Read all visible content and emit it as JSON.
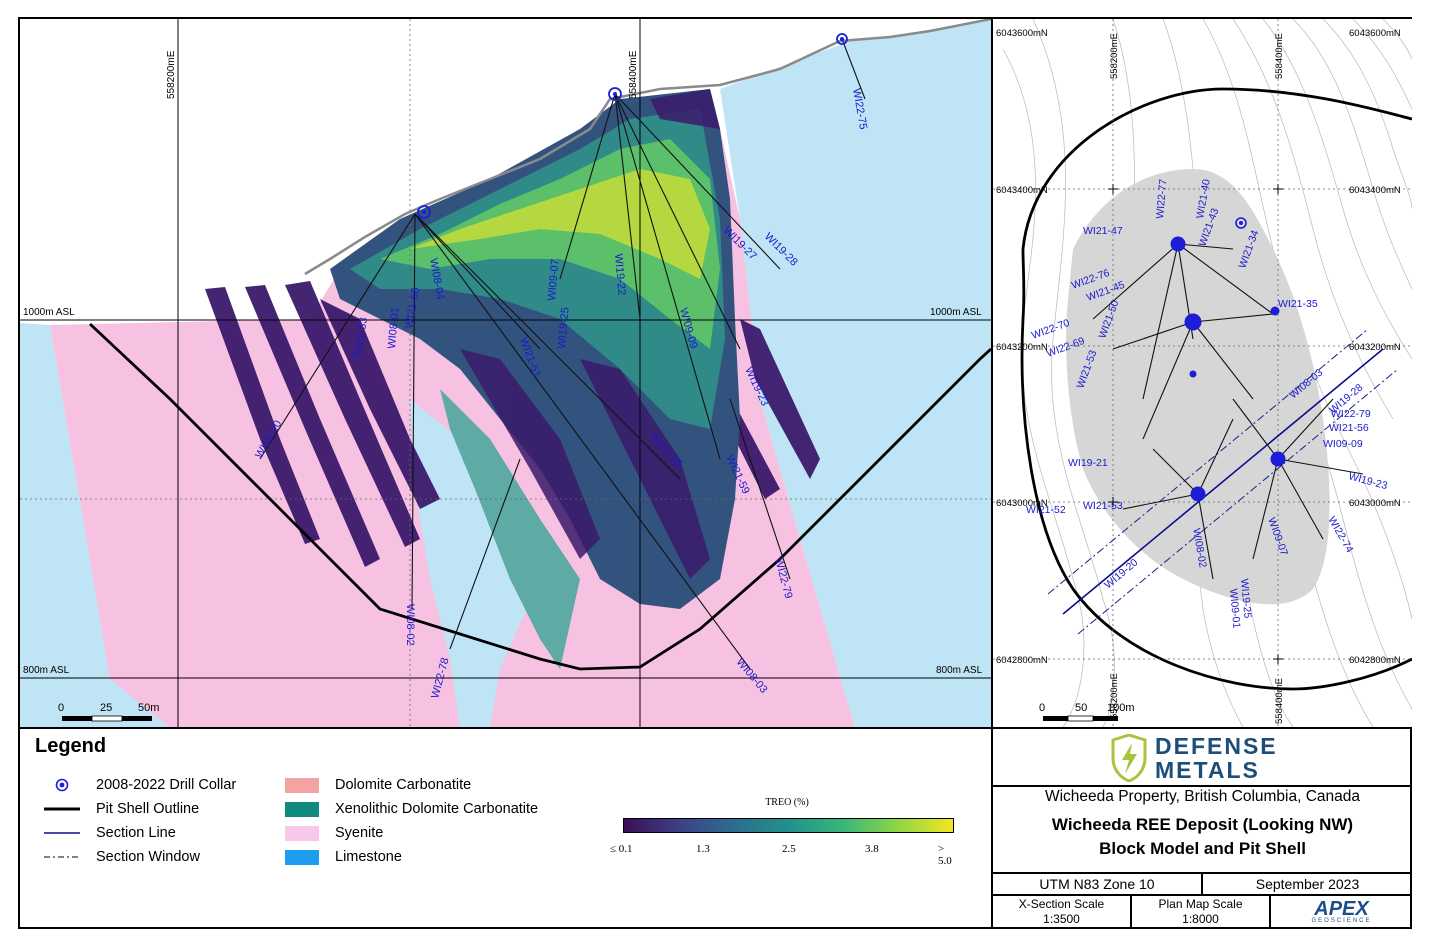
{
  "section": {
    "grid_labels": {
      "x1": "558200mE",
      "x2": "558400mE",
      "asl_top_left": "1000m ASL",
      "asl_top_right": "1000m ASL",
      "asl_bottom_left": "800m ASL",
      "asl_bottom_right": "800m ASL"
    },
    "scale": {
      "ticks": [
        "0",
        "25",
        "50m"
      ]
    },
    "holes": [
      "WI22-75",
      "WI19-27",
      "WI19-28",
      "WI19-22",
      "WI09-07",
      "WI21-56",
      "WI21-59",
      "WI22-79",
      "WI08-03",
      "WI22-78",
      "WI08-02",
      "WI19-20",
      "WI21-53",
      "WI21-66",
      "WI08-04",
      "WI08-01",
      "WI21-51",
      "WI19-25",
      "WI09-09",
      "WI19-23"
    ]
  },
  "plan": {
    "grid_labels": {
      "n1_left": "6043600mN",
      "n1_right": "6043600mN",
      "n2_left": "6043400mN",
      "n2_right": "6043400mN",
      "n3_left": "6043200mN",
      "n3_right": "6043200mN",
      "n4_left": "6043000mN",
      "n4_right": "6043000mN",
      "n5_left": "6042800mN",
      "n5_right": "6042800mN",
      "e1_top": "558200mE",
      "e2_top": "558400mE",
      "e1_bottom": "558200mE",
      "e2_bottom": "558400mE"
    },
    "scale": {
      "ticks": [
        "0",
        "50",
        "100m"
      ]
    },
    "holes": [
      "WI22-77",
      "WI21-40",
      "WI21-43",
      "WI21-47",
      "WI21-34",
      "WI22-76",
      "WI21-45",
      "WI21-35",
      "WI22-70",
      "WI21-50",
      "WI22-69",
      "WI21-53",
      "WI22-79",
      "WI09-09",
      "WI21-56",
      "WI19-21",
      "WI19-23",
      "WI21-52",
      "WI21-53",
      "WI19-20",
      "WI22-74",
      "WI09-07",
      "WI19-25",
      "WI09-01",
      "WI08-02",
      "WI19-28",
      "WI08-03"
    ]
  },
  "legend": {
    "title": "Legend",
    "items_left": [
      "2008-2022 Drill Collar",
      "Pit Shell Outline",
      "Section Line",
      "Section Window"
    ],
    "items_right": [
      "Dolomite Carbonatite",
      "Xenolithic Dolomite Carbonatite",
      "Syenite",
      "Limestone"
    ],
    "colors": {
      "dolomite_carbonatite": "#f4a3a3",
      "xenolithic": "#108a7f",
      "syenite": "#f7c8ea",
      "limestone": "#1e9cf0",
      "limestone_map": "#bfe4f5",
      "syenite_map": "#f7c2e2",
      "xenolithic_map": "#5eaaa5",
      "drill_blue": "#1d1dd8"
    },
    "colorbar": {
      "title": "TREO (%)",
      "ticks": [
        "≤ 0.1",
        "1.3",
        "2.5",
        "3.8",
        "> 5.0"
      ],
      "stops": [
        "#3b0f57",
        "#3e3f86",
        "#2d6d8d",
        "#21918c",
        "#38b77a",
        "#8fd645",
        "#f4e61e"
      ]
    }
  },
  "title_block": {
    "company_line1": "DEFENSE",
    "company_line2": "METALS",
    "property": "Wicheeda Property, British Columbia, Canada",
    "title_line1": "Wicheeda REE Deposit (Looking NW)",
    "title_line2": "Block Model and Pit Shell",
    "datum": "UTM N83 Zone 10",
    "date": "September 2023",
    "xsec_scale_label": "X-Section Scale",
    "xsec_scale_value": "1:3500",
    "plan_scale_label": "Plan Map Scale",
    "plan_scale_value": "1:8000",
    "apex_logo": "APEX",
    "apex_sub": "GEOSCIENCE"
  }
}
